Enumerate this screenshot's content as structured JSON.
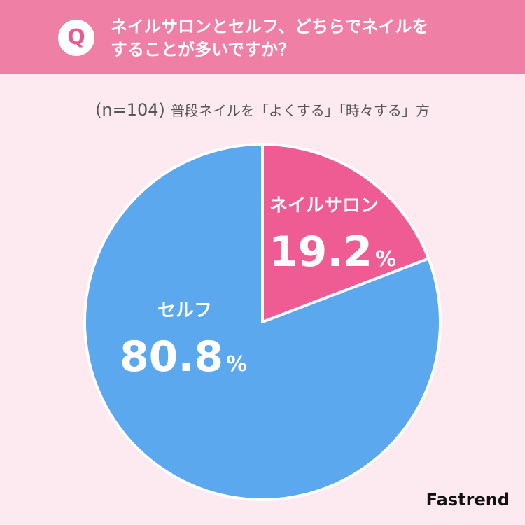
{
  "header": {
    "badge": "Q",
    "question_line1": "ネイルサロンとセルフ、どちらでネイルを",
    "question_line2": "することが多いですか？"
  },
  "subtitle": {
    "sample": "(n=104)",
    "scope": "普段ネイルを「よくする」「時々する」方"
  },
  "brand": "Fastrend",
  "chart_data": {
    "type": "pie",
    "unit": "%",
    "slices": [
      {
        "label": "ネイルサロン",
        "value": 19.2,
        "value_text": "19.2",
        "color": "#ef5b93"
      },
      {
        "label": "セルフ",
        "value": 80.8,
        "value_text": "80.8",
        "color": "#5ca8ee"
      }
    ]
  }
}
